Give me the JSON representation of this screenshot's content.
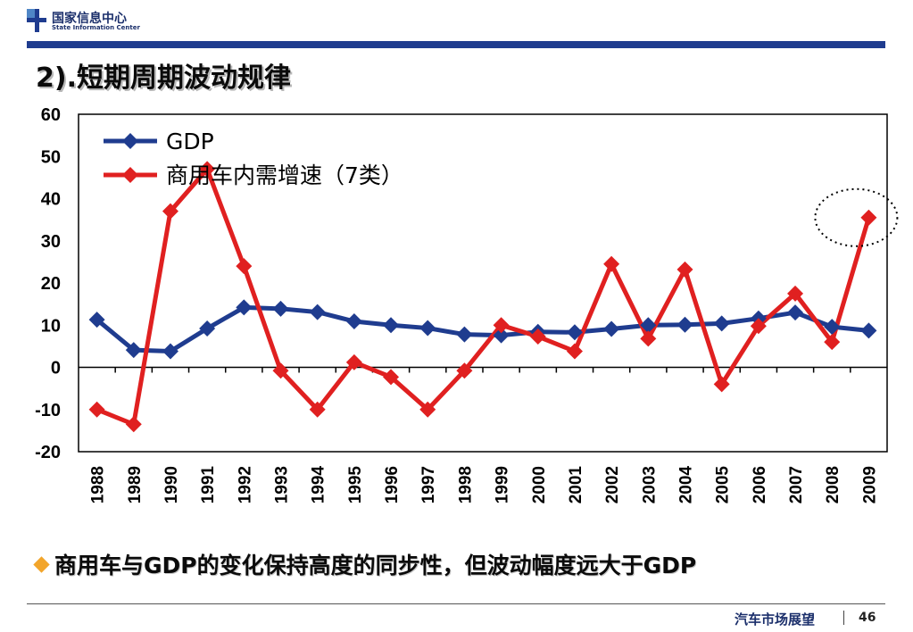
{
  "header": {
    "org_name_cn": "国家信息中心",
    "org_name_en": "State Information Center",
    "slide_title": "2).短期周期波动规律",
    "brand_color": "#1f3c8f"
  },
  "chart_data": {
    "type": "line",
    "categories": [
      "1988",
      "1989",
      "1990",
      "1991",
      "1992",
      "1993",
      "1994",
      "1995",
      "1996",
      "1997",
      "1998",
      "1999",
      "2000",
      "2001",
      "2002",
      "2003",
      "2004",
      "2005",
      "2006",
      "2007",
      "2008",
      "2009"
    ],
    "series": [
      {
        "name": "GDP",
        "color": "#1f3c8f",
        "marker": "diamond",
        "values": [
          11.3,
          4.1,
          3.8,
          9.2,
          14.2,
          13.9,
          13.1,
          10.9,
          10.0,
          9.3,
          7.8,
          7.6,
          8.4,
          8.3,
          9.1,
          10.0,
          10.1,
          10.4,
          11.6,
          13.0,
          9.6,
          8.7
        ]
      },
      {
        "name": "商用车内需增速（7类）",
        "color": "#e02020",
        "marker": "diamond",
        "values": [
          -10.0,
          -13.5,
          37.0,
          47.0,
          24.0,
          -0.8,
          -10.0,
          1.2,
          -2.3,
          -10.0,
          -0.8,
          10.0,
          7.3,
          3.8,
          24.5,
          6.8,
          23.2,
          -4.0,
          9.8,
          17.5,
          6.0,
          35.5
        ]
      }
    ],
    "title": "",
    "xlabel": "",
    "ylabel": "",
    "ylim": [
      -20,
      60
    ],
    "yticks": [
      -20,
      -10,
      0,
      10,
      20,
      30,
      40,
      50,
      60
    ],
    "grid": false,
    "legend": "top-left",
    "annotation": "dotted-circle-around-2009-point"
  },
  "bullet": {
    "text": "商用车与GDP的变化保持高度的同步性，但波动幅度远大于GDP",
    "icon_color": "#f2a52b"
  },
  "footer": {
    "label": "汽车市场展望",
    "page": "46"
  }
}
